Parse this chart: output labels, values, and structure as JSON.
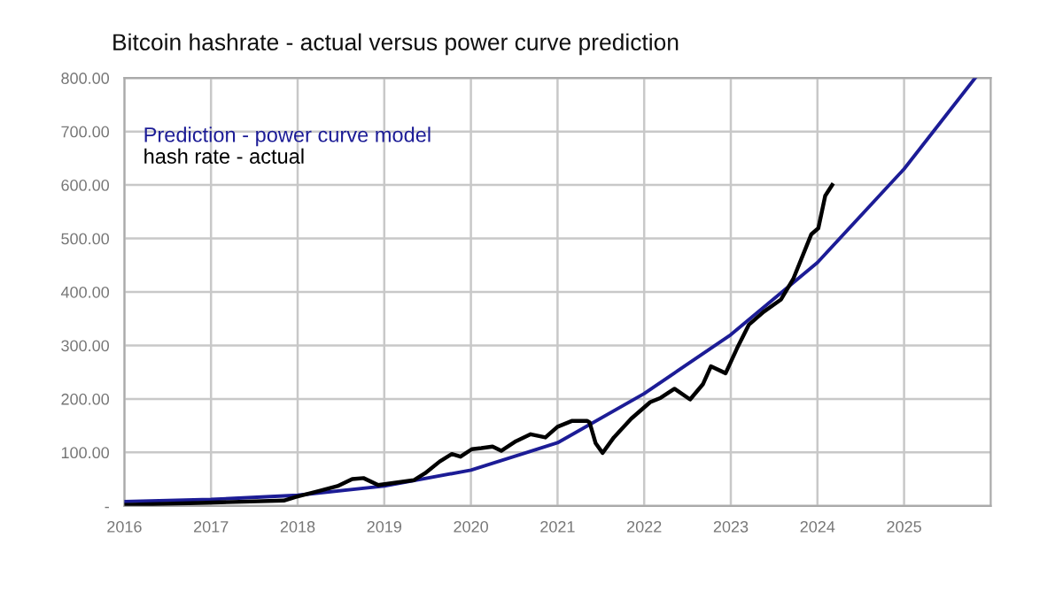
{
  "chart_data": {
    "type": "line",
    "title": "Bitcoin hashrate - actual versus power curve prediction",
    "series": [
      {
        "name": "Prediction - power curve model",
        "color": "#1c1c96",
        "x": [
          2016,
          2017,
          2018,
          2019,
          2020,
          2021,
          2022,
          2023,
          2024,
          2025,
          2025.82
        ],
        "values": [
          8,
          12,
          20,
          37,
          67,
          118,
          210,
          320,
          455,
          630,
          800
        ]
      },
      {
        "name": "hash rate - actual",
        "color": "#000000",
        "x": [
          2016,
          2016.95,
          2017.84,
          2017.98,
          2018.25,
          2018.46,
          2018.63,
          2018.76,
          2018.93,
          2019.34,
          2019.47,
          2019.64,
          2019.78,
          2019.88,
          2020.01,
          2020.12,
          2020.25,
          2020.35,
          2020.52,
          2020.69,
          2020.86,
          2021.0,
          2021.17,
          2021.34,
          2021.37,
          2021.44,
          2021.52,
          2021.65,
          2021.85,
          2022.07,
          2022.19,
          2022.35,
          2022.53,
          2022.68,
          2022.77,
          2022.94,
          2023.07,
          2023.21,
          2023.38,
          2023.58,
          2023.72,
          2023.93,
          2024.01,
          2024.09,
          2024.17
        ],
        "values": [
          2,
          6,
          10,
          17,
          28,
          37,
          50,
          52,
          39,
          48,
          61,
          83,
          97,
          92,
          106,
          108,
          111,
          103,
          121,
          134,
          128,
          148,
          159,
          159,
          156,
          117,
          99,
          128,
          163,
          194,
          202,
          219,
          199,
          228,
          261,
          248,
          294,
          339,
          363,
          386,
          424,
          508,
          519,
          580,
          600
        ]
      }
    ],
    "xlim": [
      2016,
      2026
    ],
    "xticks": [
      2016,
      2017,
      2018,
      2019,
      2020,
      2021,
      2022,
      2023,
      2024,
      2025
    ],
    "ylim": [
      0,
      800
    ],
    "yticks": [
      {
        "value": 0,
        "label": "-"
      },
      {
        "value": 100,
        "label": "100.00"
      },
      {
        "value": 200,
        "label": "200.00"
      },
      {
        "value": 300,
        "label": "300.00"
      },
      {
        "value": 400,
        "label": "400.00"
      },
      {
        "value": 500,
        "label": "500.00"
      },
      {
        "value": 600,
        "label": "600.00"
      },
      {
        "value": 700,
        "label": "700.00"
      },
      {
        "value": 800,
        "label": "800.00"
      }
    ],
    "grid": true,
    "legend": "top left",
    "marker": "none",
    "line_style": "solid"
  }
}
